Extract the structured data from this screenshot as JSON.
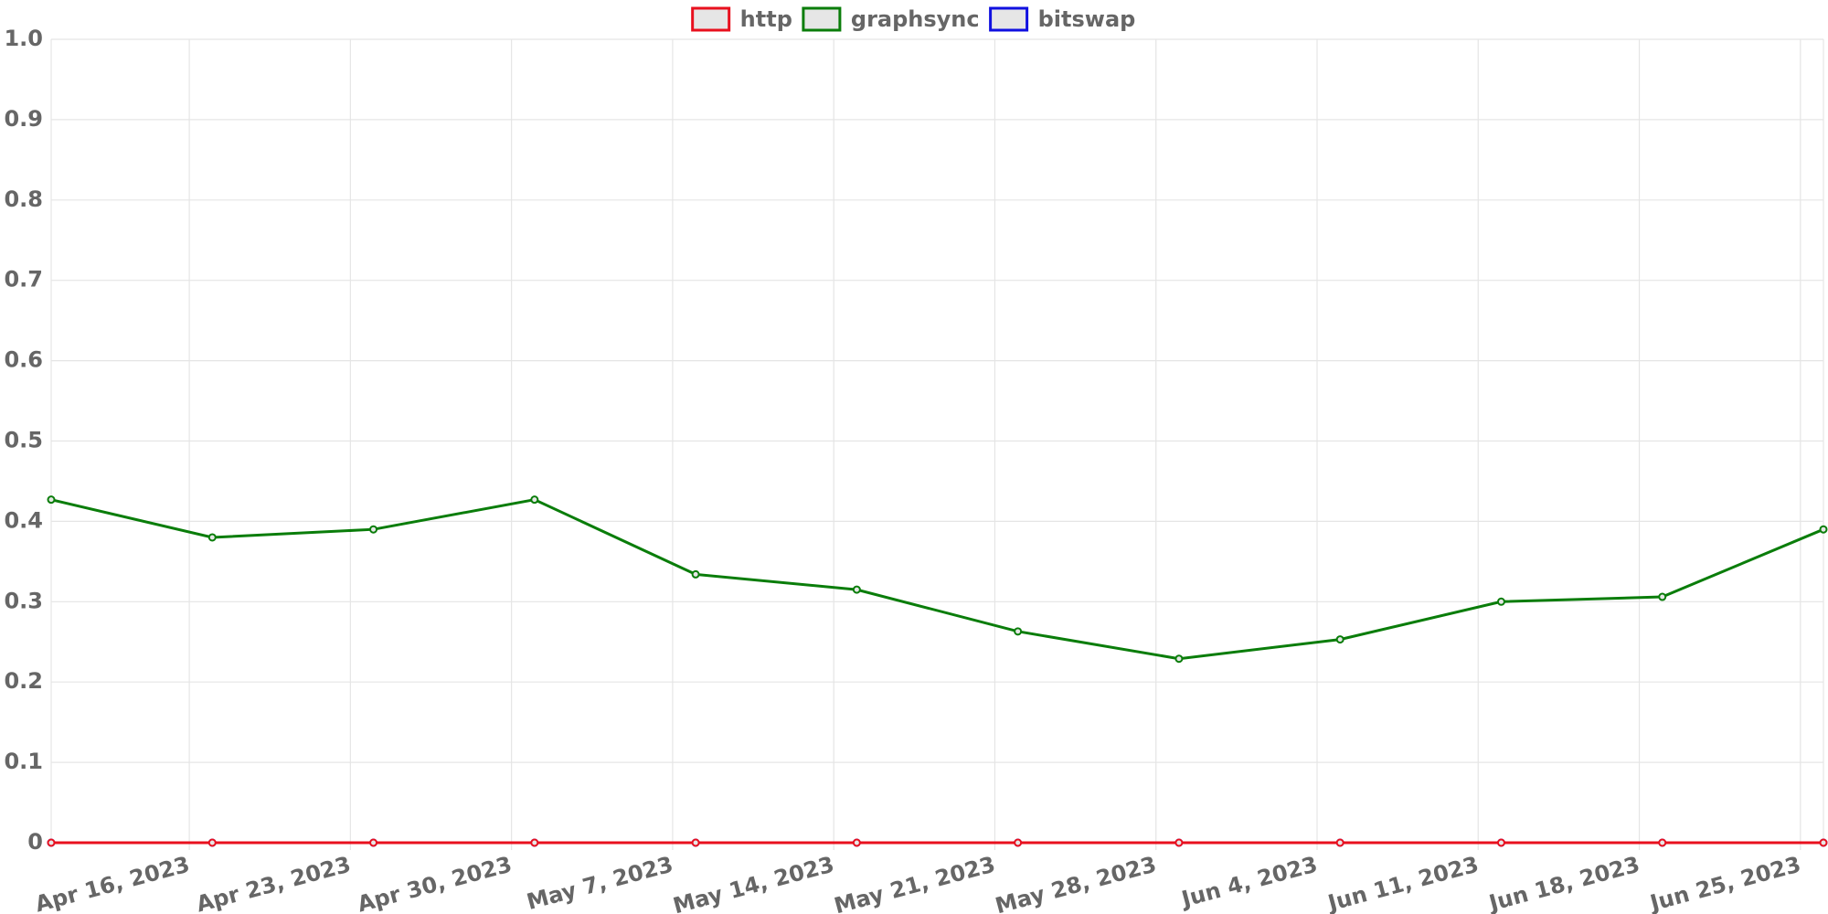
{
  "chart_data": {
    "type": "line",
    "x": [
      "2023-04-10",
      "2023-04-17",
      "2023-04-24",
      "2023-05-01",
      "2023-05-08",
      "2023-05-15",
      "2023-05-22",
      "2023-05-29",
      "2023-06-05",
      "2023-06-12",
      "2023-06-19",
      "2023-06-26"
    ],
    "series": [
      {
        "name": "http",
        "color": "#e8101e",
        "values": [
          0,
          0,
          0,
          0,
          0,
          0,
          0,
          0,
          0,
          0,
          0,
          0
        ]
      },
      {
        "name": "graphsync",
        "color": "#0a7d0a",
        "values": [
          0.427,
          0.38,
          0.39,
          0.427,
          0.334,
          0.315,
          0.263,
          0.229,
          0.253,
          0.3,
          0.306,
          0.39
        ]
      },
      {
        "name": "bitswap",
        "color": "#1010e0",
        "values": [
          0,
          0,
          0,
          0,
          0,
          0,
          0,
          0,
          0,
          0,
          0,
          0
        ]
      }
    ],
    "xlim": [
      "2023-04-10",
      "2023-06-26"
    ],
    "xticks": [
      {
        "value": "2023-04-16",
        "label": "Apr 16, 2023"
      },
      {
        "value": "2023-04-23",
        "label": "Apr 23, 2023"
      },
      {
        "value": "2023-04-30",
        "label": "Apr 30, 2023"
      },
      {
        "value": "2023-05-07",
        "label": "May 7, 2023"
      },
      {
        "value": "2023-05-14",
        "label": "May 14, 2023"
      },
      {
        "value": "2023-05-21",
        "label": "May 21, 2023"
      },
      {
        "value": "2023-05-28",
        "label": "May 28, 2023"
      },
      {
        "value": "2023-06-04",
        "label": "Jun 4, 2023"
      },
      {
        "value": "2023-06-11",
        "label": "Jun 11, 2023"
      },
      {
        "value": "2023-06-18",
        "label": "Jun 18, 2023"
      },
      {
        "value": "2023-06-25",
        "label": "Jun 25, 2023"
      }
    ],
    "ylim": [
      0,
      1
    ],
    "yticks": [
      0,
      0.1,
      0.2,
      0.3,
      0.4,
      0.5,
      0.6,
      0.7,
      0.8,
      0.9,
      {
        "value": 1,
        "label": "1.0"
      }
    ],
    "grid": true,
    "legend": "top"
  }
}
